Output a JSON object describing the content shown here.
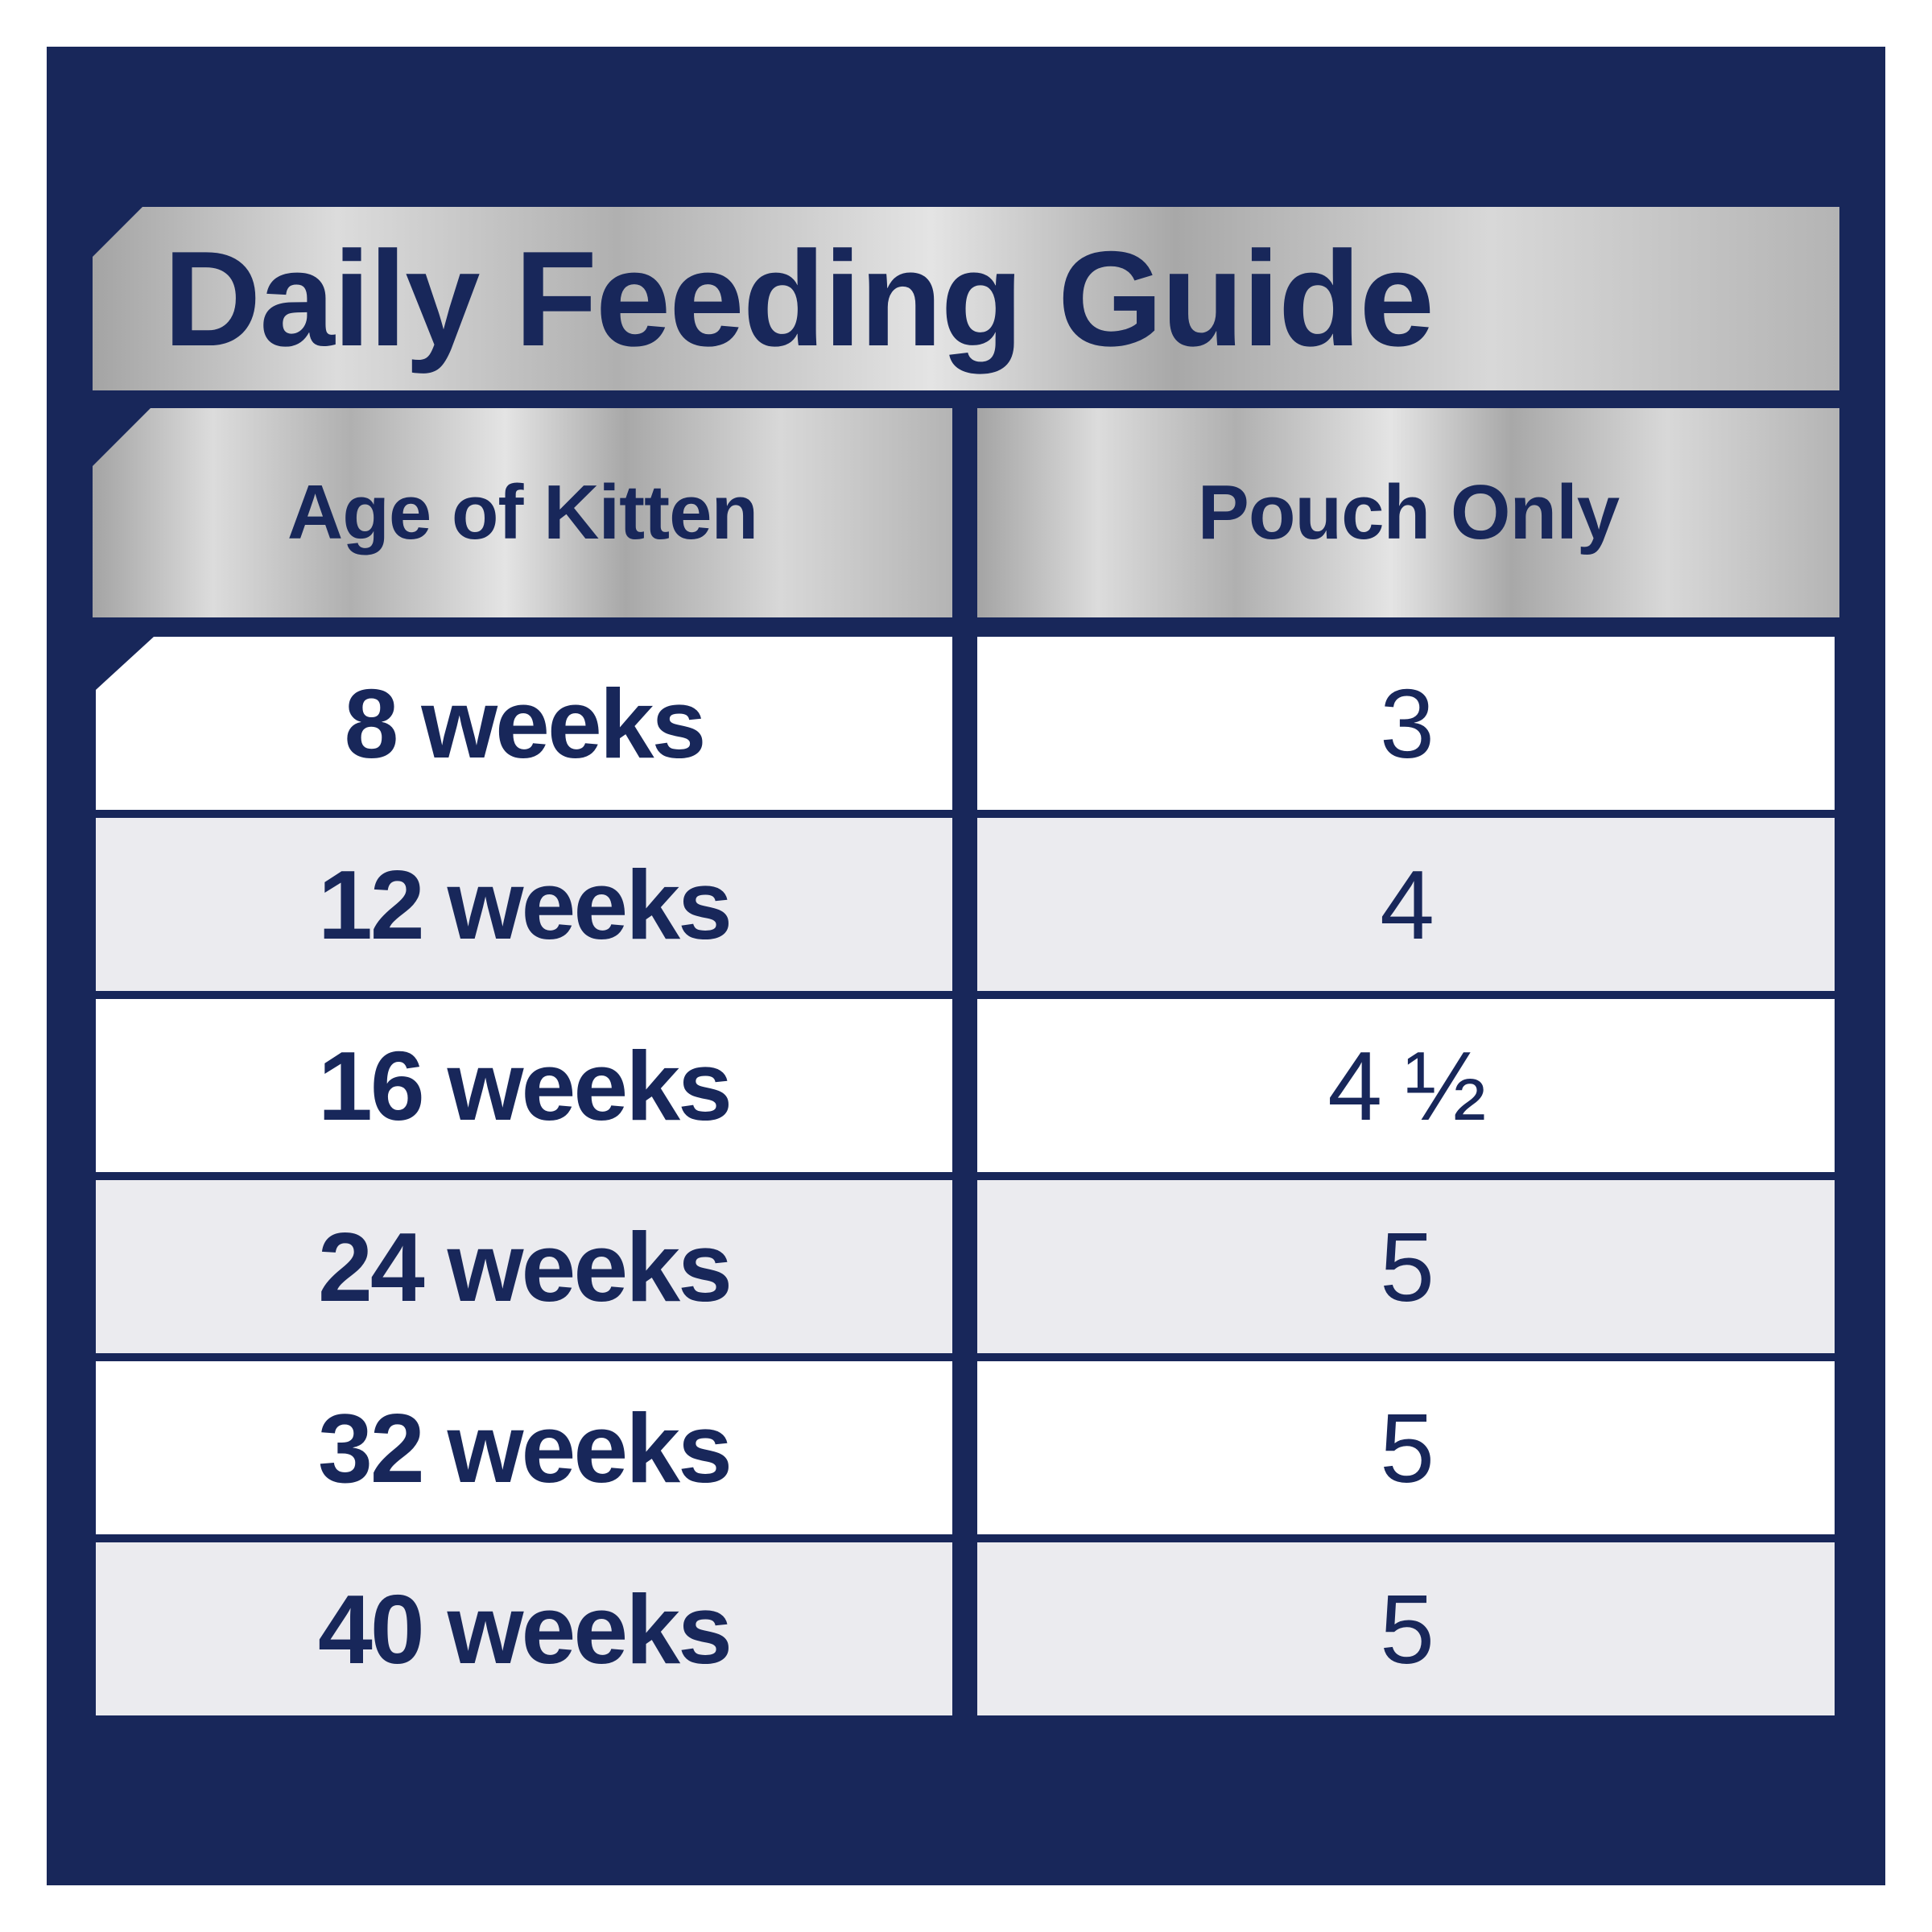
{
  "title": "Daily Feeding Guide",
  "table": {
    "header": [
      "Age of Kitten",
      "Pouch Only"
    ],
    "rows": [
      [
        "8 weeks",
        "3"
      ],
      [
        "12 weeks",
        "4"
      ],
      [
        "16 weeks",
        "4 ½"
      ],
      [
        "24 weeks",
        "5"
      ],
      [
        "32 weeks",
        "5"
      ],
      [
        "40 weeks",
        "5"
      ]
    ]
  }
}
